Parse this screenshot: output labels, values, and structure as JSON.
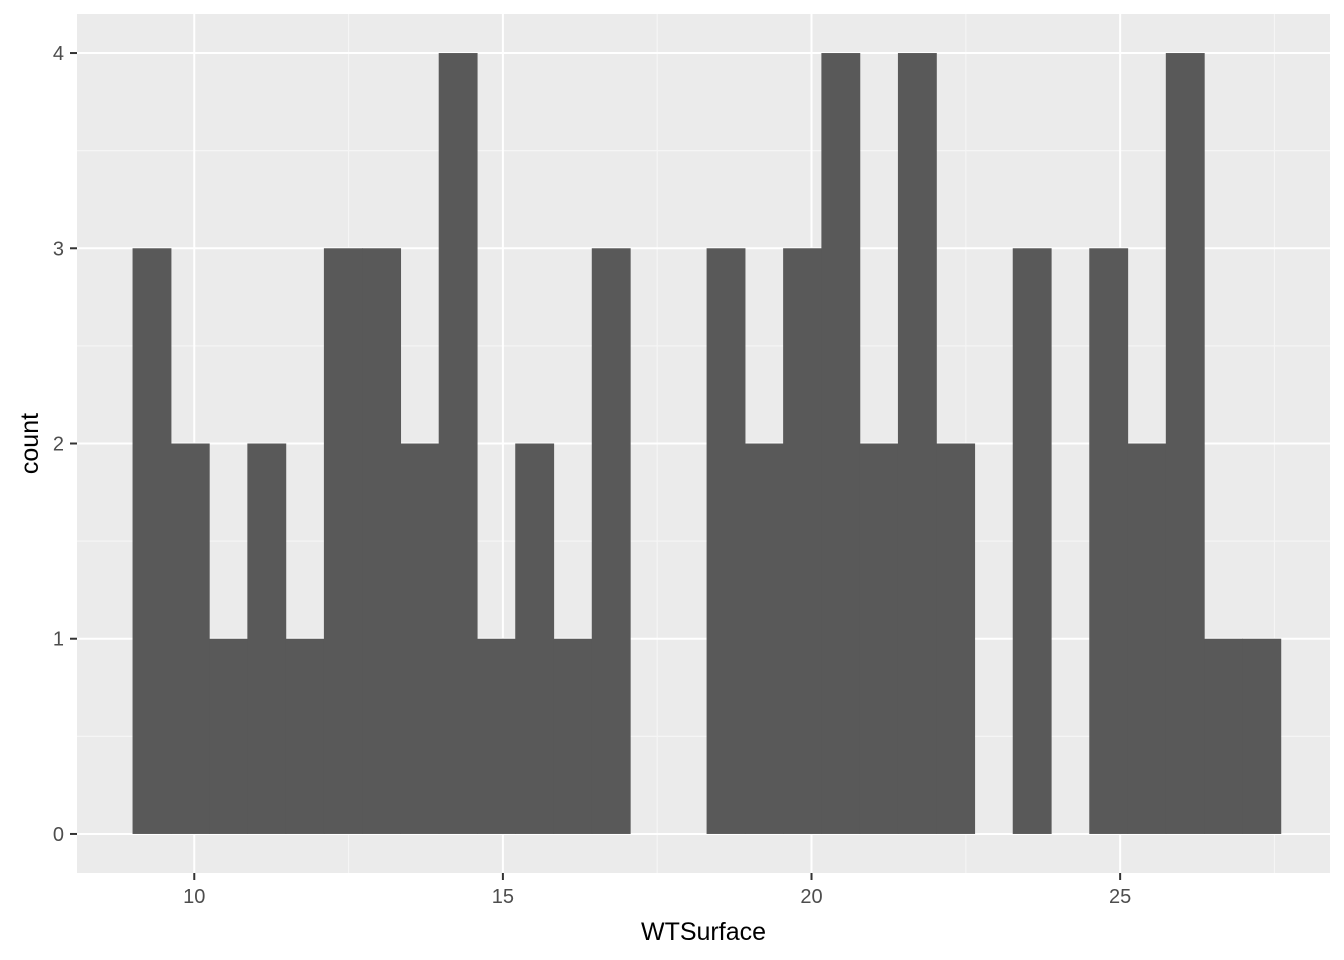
{
  "chart_data": {
    "type": "bar",
    "subtype": "histogram",
    "title": "",
    "xlabel": "WTSurface",
    "ylabel": "count",
    "xlim": [
      8.1,
      28.4
    ],
    "ylim": [
      -0.2,
      4.2
    ],
    "x_ticks": [
      10,
      15,
      20,
      25
    ],
    "x_tick_labels": [
      "10",
      "15",
      "20",
      "25"
    ],
    "y_ticks": [
      0,
      1,
      2,
      3,
      4
    ],
    "y_tick_labels": [
      "0",
      "1",
      "2",
      "3",
      "4"
    ],
    "bin_start": 9.0,
    "bin_width": 0.62,
    "bin_counts": [
      3,
      2,
      1,
      2,
      1,
      3,
      3,
      2,
      4,
      1,
      2,
      1,
      3,
      0,
      0,
      3,
      2,
      3,
      4,
      2,
      4,
      2,
      0,
      3,
      0,
      3,
      2,
      4,
      1,
      1
    ],
    "grid": true,
    "legend": "none",
    "colors": {
      "panel_background": "#ebebeb",
      "grid_major": "#ffffff",
      "grid_minor": "#f5f5f5",
      "bar_fill": "#595959",
      "tick_label": "#4d4d4d",
      "tick_mark": "#333333",
      "axis_title": "#000000"
    }
  }
}
